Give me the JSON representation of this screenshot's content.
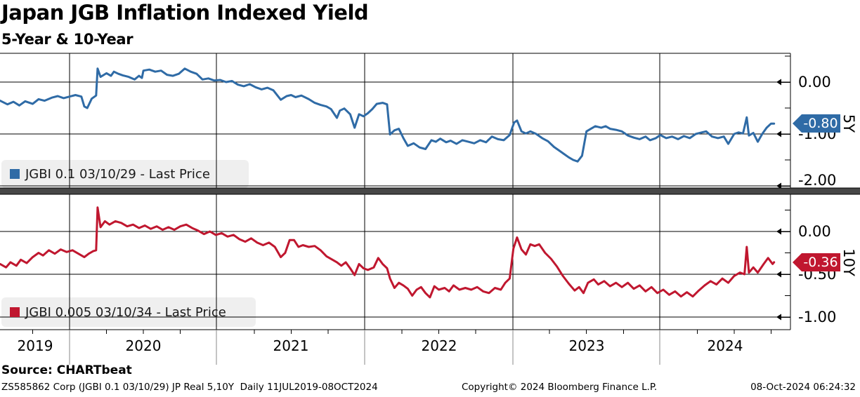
{
  "title": "Japan JGB Inflation Indexed Yield",
  "subtitle": "5-Year & 10-Year",
  "panels": {
    "top": {
      "axis_label": "5Y",
      "legend": "JGBI 0.1 03/10/29 - Last Price",
      "last_price": "-0.80",
      "yticks": [
        "0.00",
        "-1.00",
        "-2.00"
      ],
      "color": "#2f6ba6"
    },
    "bottom": {
      "axis_label": "10Y",
      "legend": "JGBI 0.005 03/10/34 - Last Price",
      "last_price": "-0.36",
      "yticks": [
        "0.00",
        "-0.50",
        "-1.00"
      ],
      "color": "#c0172f"
    }
  },
  "xaxis": {
    "years": [
      "2019",
      "2020",
      "2021",
      "2022",
      "2023",
      "2024"
    ]
  },
  "footer": {
    "source": "Source: CHARTbeat",
    "meta": "ZS585862 Corp (JGBI 0.1 03/10/29) JP Real 5,10Y  Daily 11JUL2019-08OCT2024",
    "copyright": "Copyright© 2024 Bloomberg Finance L.P.",
    "timestamp": "08-Oct-2024 06:24:32"
  },
  "chart_data": [
    {
      "type": "line",
      "title": "Japan JGB Inflation Indexed Yield - 5Y panel",
      "series_name": "JGBI 0.1 03/10/29 - Last Price",
      "color": "#2f6ba6",
      "x_unit": "decimal_year",
      "x_range": [
        2019.53,
        2024.77
      ],
      "ylim": [
        -2.25,
        0.55
      ],
      "yticks": [
        0.0,
        -1.0,
        -2.0
      ],
      "grid": true,
      "legend_position": "bottom-left",
      "last_value": -0.8,
      "points": [
        [
          2019.53,
          -0.36
        ],
        [
          2019.58,
          -0.43
        ],
        [
          2019.62,
          -0.38
        ],
        [
          2019.66,
          -0.45
        ],
        [
          2019.7,
          -0.37
        ],
        [
          2019.75,
          -0.42
        ],
        [
          2019.79,
          -0.33
        ],
        [
          2019.83,
          -0.36
        ],
        [
          2019.88,
          -0.3
        ],
        [
          2019.92,
          -0.27
        ],
        [
          2019.96,
          -0.31
        ],
        [
          2020.0,
          -0.28
        ],
        [
          2020.04,
          -0.25
        ],
        [
          2020.08,
          -0.28
        ],
        [
          2020.1,
          -0.47
        ],
        [
          2020.12,
          -0.5
        ],
        [
          2020.15,
          -0.32
        ],
        [
          2020.18,
          -0.26
        ],
        [
          2020.19,
          0.26
        ],
        [
          2020.21,
          0.1
        ],
        [
          2020.25,
          0.17
        ],
        [
          2020.28,
          0.12
        ],
        [
          2020.3,
          0.2
        ],
        [
          2020.33,
          0.16
        ],
        [
          2020.36,
          0.13
        ],
        [
          2020.4,
          0.1
        ],
        [
          2020.44,
          0.05
        ],
        [
          2020.47,
          0.12
        ],
        [
          2020.49,
          0.08
        ],
        [
          2020.5,
          0.22
        ],
        [
          2020.54,
          0.24
        ],
        [
          2020.58,
          0.2
        ],
        [
          2020.62,
          0.22
        ],
        [
          2020.66,
          0.14
        ],
        [
          2020.7,
          0.12
        ],
        [
          2020.74,
          0.16
        ],
        [
          2020.78,
          0.26
        ],
        [
          2020.82,
          0.2
        ],
        [
          2020.86,
          0.16
        ],
        [
          2020.9,
          0.05
        ],
        [
          2020.94,
          0.07
        ],
        [
          2020.98,
          0.03
        ],
        [
          2021.02,
          0.04
        ],
        [
          2021.06,
          0.0
        ],
        [
          2021.1,
          0.02
        ],
        [
          2021.14,
          -0.05
        ],
        [
          2021.18,
          -0.08
        ],
        [
          2021.22,
          -0.04
        ],
        [
          2021.26,
          -0.1
        ],
        [
          2021.3,
          -0.14
        ],
        [
          2021.34,
          -0.11
        ],
        [
          2021.38,
          -0.16
        ],
        [
          2021.43,
          -0.34
        ],
        [
          2021.47,
          -0.27
        ],
        [
          2021.5,
          -0.25
        ],
        [
          2021.53,
          -0.29
        ],
        [
          2021.57,
          -0.26
        ],
        [
          2021.62,
          -0.33
        ],
        [
          2021.66,
          -0.4
        ],
        [
          2021.7,
          -0.44
        ],
        [
          2021.74,
          -0.47
        ],
        [
          2021.77,
          -0.52
        ],
        [
          2021.81,
          -0.69
        ],
        [
          2021.83,
          -0.55
        ],
        [
          2021.86,
          -0.51
        ],
        [
          2021.9,
          -0.62
        ],
        [
          2021.93,
          -0.88
        ],
        [
          2021.96,
          -0.62
        ],
        [
          2021.99,
          -0.66
        ],
        [
          2022.02,
          -0.6
        ],
        [
          2022.05,
          -0.52
        ],
        [
          2022.08,
          -0.42
        ],
        [
          2022.12,
          -0.4
        ],
        [
          2022.15,
          -0.43
        ],
        [
          2022.17,
          -1.01
        ],
        [
          2022.2,
          -0.93
        ],
        [
          2022.23,
          -0.9
        ],
        [
          2022.26,
          -1.08
        ],
        [
          2022.29,
          -1.23
        ],
        [
          2022.33,
          -1.18
        ],
        [
          2022.37,
          -1.26
        ],
        [
          2022.41,
          -1.29
        ],
        [
          2022.45,
          -1.12
        ],
        [
          2022.48,
          -1.15
        ],
        [
          2022.51,
          -1.09
        ],
        [
          2022.55,
          -1.16
        ],
        [
          2022.58,
          -1.13
        ],
        [
          2022.62,
          -1.19
        ],
        [
          2022.66,
          -1.12
        ],
        [
          2022.7,
          -1.15
        ],
        [
          2022.74,
          -1.18
        ],
        [
          2022.78,
          -1.12
        ],
        [
          2022.82,
          -1.16
        ],
        [
          2022.86,
          -1.05
        ],
        [
          2022.9,
          -1.1
        ],
        [
          2022.94,
          -1.12
        ],
        [
          2022.98,
          -1.02
        ],
        [
          2023.01,
          -0.78
        ],
        [
          2023.03,
          -0.74
        ],
        [
          2023.06,
          -0.95
        ],
        [
          2023.09,
          -0.99
        ],
        [
          2023.12,
          -0.95
        ],
        [
          2023.16,
          -1.0
        ],
        [
          2023.2,
          -1.08
        ],
        [
          2023.24,
          -1.14
        ],
        [
          2023.28,
          -1.25
        ],
        [
          2023.32,
          -1.33
        ],
        [
          2023.35,
          -1.39
        ],
        [
          2023.38,
          -1.45
        ],
        [
          2023.41,
          -1.5
        ],
        [
          2023.44,
          -1.53
        ],
        [
          2023.47,
          -1.42
        ],
        [
          2023.5,
          -0.95
        ],
        [
          2023.53,
          -0.9
        ],
        [
          2023.56,
          -0.85
        ],
        [
          2023.6,
          -0.88
        ],
        [
          2023.63,
          -0.85
        ],
        [
          2023.66,
          -0.9
        ],
        [
          2023.7,
          -0.92
        ],
        [
          2023.74,
          -0.95
        ],
        [
          2023.78,
          -1.03
        ],
        [
          2023.82,
          -1.07
        ],
        [
          2023.86,
          -1.1
        ],
        [
          2023.9,
          -1.05
        ],
        [
          2023.93,
          -1.12
        ],
        [
          2023.97,
          -1.08
        ],
        [
          2024.0,
          -1.02
        ],
        [
          2024.04,
          -1.08
        ],
        [
          2024.08,
          -1.05
        ],
        [
          2024.12,
          -1.1
        ],
        [
          2024.16,
          -1.04
        ],
        [
          2024.2,
          -1.08
        ],
        [
          2024.24,
          -1.0
        ],
        [
          2024.28,
          -0.97
        ],
        [
          2024.31,
          -0.95
        ],
        [
          2024.35,
          -1.05
        ],
        [
          2024.39,
          -1.08
        ],
        [
          2024.43,
          -1.05
        ],
        [
          2024.46,
          -1.19
        ],
        [
          2024.5,
          -1.0
        ],
        [
          2024.53,
          -0.97
        ],
        [
          2024.56,
          -0.99
        ],
        [
          2024.585,
          -0.68
        ],
        [
          2024.6,
          -1.03
        ],
        [
          2024.63,
          -0.98
        ],
        [
          2024.66,
          -1.15
        ],
        [
          2024.69,
          -1.0
        ],
        [
          2024.72,
          -0.88
        ],
        [
          2024.75,
          -0.8
        ],
        [
          2024.77,
          -0.8
        ]
      ]
    },
    {
      "type": "line",
      "title": "Japan JGB Inflation Indexed Yield - 10Y panel",
      "series_name": "JGBI 0.005 03/10/34 - Last Price",
      "color": "#c0172f",
      "x_unit": "decimal_year",
      "x_range": [
        2019.53,
        2024.77
      ],
      "ylim": [
        -1.15,
        0.43
      ],
      "yticks": [
        0.0,
        -0.5,
        -1.0
      ],
      "grid": true,
      "legend_position": "bottom-left",
      "last_value": -0.36,
      "points": [
        [
          2019.53,
          -0.38
        ],
        [
          2019.57,
          -0.42
        ],
        [
          2019.6,
          -0.36
        ],
        [
          2019.64,
          -0.4
        ],
        [
          2019.67,
          -0.33
        ],
        [
          2019.71,
          -0.37
        ],
        [
          2019.75,
          -0.3
        ],
        [
          2019.79,
          -0.25
        ],
        [
          2019.82,
          -0.28
        ],
        [
          2019.86,
          -0.22
        ],
        [
          2019.9,
          -0.26
        ],
        [
          2019.94,
          -0.21
        ],
        [
          2019.98,
          -0.24
        ],
        [
          2020.02,
          -0.22
        ],
        [
          2020.06,
          -0.26
        ],
        [
          2020.1,
          -0.3
        ],
        [
          2020.13,
          -0.26
        ],
        [
          2020.16,
          -0.23
        ],
        [
          2020.18,
          -0.22
        ],
        [
          2020.19,
          0.28
        ],
        [
          2020.21,
          0.05
        ],
        [
          2020.24,
          0.12
        ],
        [
          2020.27,
          0.08
        ],
        [
          2020.31,
          0.12
        ],
        [
          2020.35,
          0.1
        ],
        [
          2020.39,
          0.06
        ],
        [
          2020.43,
          0.08
        ],
        [
          2020.47,
          0.04
        ],
        [
          2020.51,
          0.07
        ],
        [
          2020.55,
          0.03
        ],
        [
          2020.59,
          0.06
        ],
        [
          2020.63,
          0.02
        ],
        [
          2020.67,
          0.05
        ],
        [
          2020.71,
          0.02
        ],
        [
          2020.75,
          0.06
        ],
        [
          2020.79,
          0.08
        ],
        [
          2020.83,
          0.04
        ],
        [
          2020.87,
          0.01
        ],
        [
          2020.91,
          -0.03
        ],
        [
          2020.95,
          0.0
        ],
        [
          2020.99,
          -0.04
        ],
        [
          2021.03,
          -0.02
        ],
        [
          2021.07,
          -0.06
        ],
        [
          2021.11,
          -0.04
        ],
        [
          2021.15,
          -0.09
        ],
        [
          2021.19,
          -0.12
        ],
        [
          2021.23,
          -0.08
        ],
        [
          2021.27,
          -0.13
        ],
        [
          2021.31,
          -0.16
        ],
        [
          2021.35,
          -0.13
        ],
        [
          2021.39,
          -0.18
        ],
        [
          2021.43,
          -0.3
        ],
        [
          2021.46,
          -0.25
        ],
        [
          2021.49,
          -0.1
        ],
        [
          2021.52,
          -0.1
        ],
        [
          2021.55,
          -0.18
        ],
        [
          2021.58,
          -0.16
        ],
        [
          2021.62,
          -0.18
        ],
        [
          2021.66,
          -0.17
        ],
        [
          2021.7,
          -0.22
        ],
        [
          2021.74,
          -0.29
        ],
        [
          2021.78,
          -0.33
        ],
        [
          2021.81,
          -0.36
        ],
        [
          2021.84,
          -0.4
        ],
        [
          2021.87,
          -0.36
        ],
        [
          2021.9,
          -0.43
        ],
        [
          2021.93,
          -0.51
        ],
        [
          2021.96,
          -0.38
        ],
        [
          2021.99,
          -0.43
        ],
        [
          2022.02,
          -0.45
        ],
        [
          2022.06,
          -0.42
        ],
        [
          2022.09,
          -0.31
        ],
        [
          2022.12,
          -0.38
        ],
        [
          2022.15,
          -0.43
        ],
        [
          2022.17,
          -0.55
        ],
        [
          2022.2,
          -0.66
        ],
        [
          2022.23,
          -0.6
        ],
        [
          2022.26,
          -0.63
        ],
        [
          2022.29,
          -0.67
        ],
        [
          2022.32,
          -0.75
        ],
        [
          2022.35,
          -0.68
        ],
        [
          2022.38,
          -0.65
        ],
        [
          2022.41,
          -0.72
        ],
        [
          2022.44,
          -0.77
        ],
        [
          2022.47,
          -0.64
        ],
        [
          2022.5,
          -0.68
        ],
        [
          2022.54,
          -0.66
        ],
        [
          2022.57,
          -0.7
        ],
        [
          2022.6,
          -0.63
        ],
        [
          2022.64,
          -0.68
        ],
        [
          2022.68,
          -0.66
        ],
        [
          2022.72,
          -0.68
        ],
        [
          2022.76,
          -0.65
        ],
        [
          2022.8,
          -0.7
        ],
        [
          2022.84,
          -0.72
        ],
        [
          2022.88,
          -0.66
        ],
        [
          2022.92,
          -0.68
        ],
        [
          2022.95,
          -0.6
        ],
        [
          2022.98,
          -0.55
        ],
        [
          2023.005,
          -0.2
        ],
        [
          2023.03,
          -0.07
        ],
        [
          2023.06,
          -0.21
        ],
        [
          2023.09,
          -0.27
        ],
        [
          2023.12,
          -0.15
        ],
        [
          2023.15,
          -0.17
        ],
        [
          2023.18,
          -0.15
        ],
        [
          2023.22,
          -0.25
        ],
        [
          2023.26,
          -0.32
        ],
        [
          2023.3,
          -0.41
        ],
        [
          2023.34,
          -0.52
        ],
        [
          2023.38,
          -0.61
        ],
        [
          2023.42,
          -0.69
        ],
        [
          2023.45,
          -0.65
        ],
        [
          2023.48,
          -0.72
        ],
        [
          2023.51,
          -0.6
        ],
        [
          2023.55,
          -0.56
        ],
        [
          2023.58,
          -0.62
        ],
        [
          2023.62,
          -0.58
        ],
        [
          2023.66,
          -0.64
        ],
        [
          2023.7,
          -0.6
        ],
        [
          2023.74,
          -0.65
        ],
        [
          2023.78,
          -0.6
        ],
        [
          2023.82,
          -0.67
        ],
        [
          2023.86,
          -0.63
        ],
        [
          2023.9,
          -0.7
        ],
        [
          2023.94,
          -0.65
        ],
        [
          2023.98,
          -0.72
        ],
        [
          2024.02,
          -0.68
        ],
        [
          2024.06,
          -0.74
        ],
        [
          2024.1,
          -0.7
        ],
        [
          2024.14,
          -0.76
        ],
        [
          2024.18,
          -0.71
        ],
        [
          2024.22,
          -0.76
        ],
        [
          2024.26,
          -0.69
        ],
        [
          2024.3,
          -0.63
        ],
        [
          2024.34,
          -0.58
        ],
        [
          2024.38,
          -0.62
        ],
        [
          2024.42,
          -0.55
        ],
        [
          2024.46,
          -0.6
        ],
        [
          2024.5,
          -0.52
        ],
        [
          2024.54,
          -0.48
        ],
        [
          2024.57,
          -0.5
        ],
        [
          2024.585,
          -0.18
        ],
        [
          2024.6,
          -0.48
        ],
        [
          2024.63,
          -0.42
        ],
        [
          2024.66,
          -0.48
        ],
        [
          2024.7,
          -0.38
        ],
        [
          2024.73,
          -0.31
        ],
        [
          2024.76,
          -0.38
        ],
        [
          2024.77,
          -0.36
        ]
      ]
    }
  ]
}
